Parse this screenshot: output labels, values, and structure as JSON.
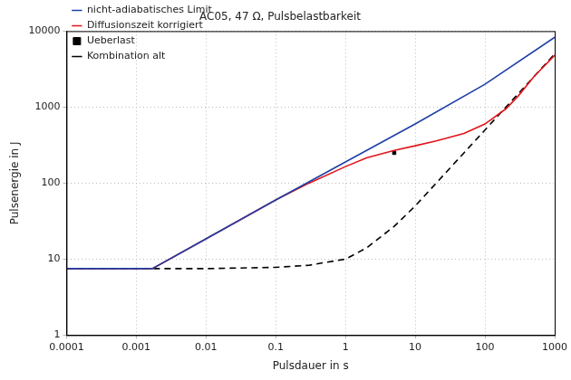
{
  "chart_data": {
    "type": "line",
    "title": "AC05, 47 Ω, Pulsbelastbarkeit",
    "x_label": "Pulsdauer in s",
    "y_label": "Pulsenergie in J",
    "log": true,
    "grid": true,
    "legend": "top-left",
    "xlim": [
      0.0001,
      1000
    ],
    "ylim": [
      1,
      10000
    ],
    "xticks": [
      0.0001,
      0.001,
      0.01,
      0.1,
      1,
      10,
      100,
      1000
    ],
    "yticks": [
      1,
      10,
      100,
      1000,
      10000
    ],
    "series": [
      {
        "name": "nicht-adiabatisches Limit",
        "type": "line",
        "color": "#1f3fa6",
        "line_style": "solid",
        "x": [
          0.0001,
          0.0017,
          0.01,
          0.1,
          1,
          10,
          100,
          1000
        ],
        "values": [
          7.5,
          7.5,
          18.5,
          60,
          190,
          600,
          2000,
          8300
        ]
      },
      {
        "name": "Diffusionszeit korrigiert",
        "type": "line",
        "color": "#e0151b",
        "line_style": "solid",
        "x": [
          0.0001,
          0.0017,
          0.01,
          0.1,
          0.3,
          1,
          2,
          5,
          10,
          20,
          50,
          100,
          200,
          300,
          500,
          1000
        ],
        "values": [
          7.5,
          7.5,
          18.5,
          60,
          100,
          165,
          215,
          270,
          310,
          360,
          450,
          600,
          950,
          1400,
          2500,
          4800
        ]
      },
      {
        "name": "Ueberlast",
        "type": "scatter",
        "color": "#000000",
        "marker": "square",
        "x": [
          5
        ],
        "values": [
          250
        ]
      },
      {
        "name": "Kombination alt",
        "type": "line",
        "color": "#000000",
        "line_style": "dashed",
        "x": [
          0.0001,
          0.001,
          0.01,
          0.1,
          0.3,
          0.5,
          1,
          2,
          5,
          10,
          20,
          50,
          100,
          200,
          500,
          1000
        ],
        "values": [
          7.5,
          7.5,
          7.5,
          7.8,
          8.3,
          9,
          10,
          14,
          27,
          50,
          100,
          250,
          500,
          1000,
          2500,
          5000
        ]
      }
    ]
  }
}
